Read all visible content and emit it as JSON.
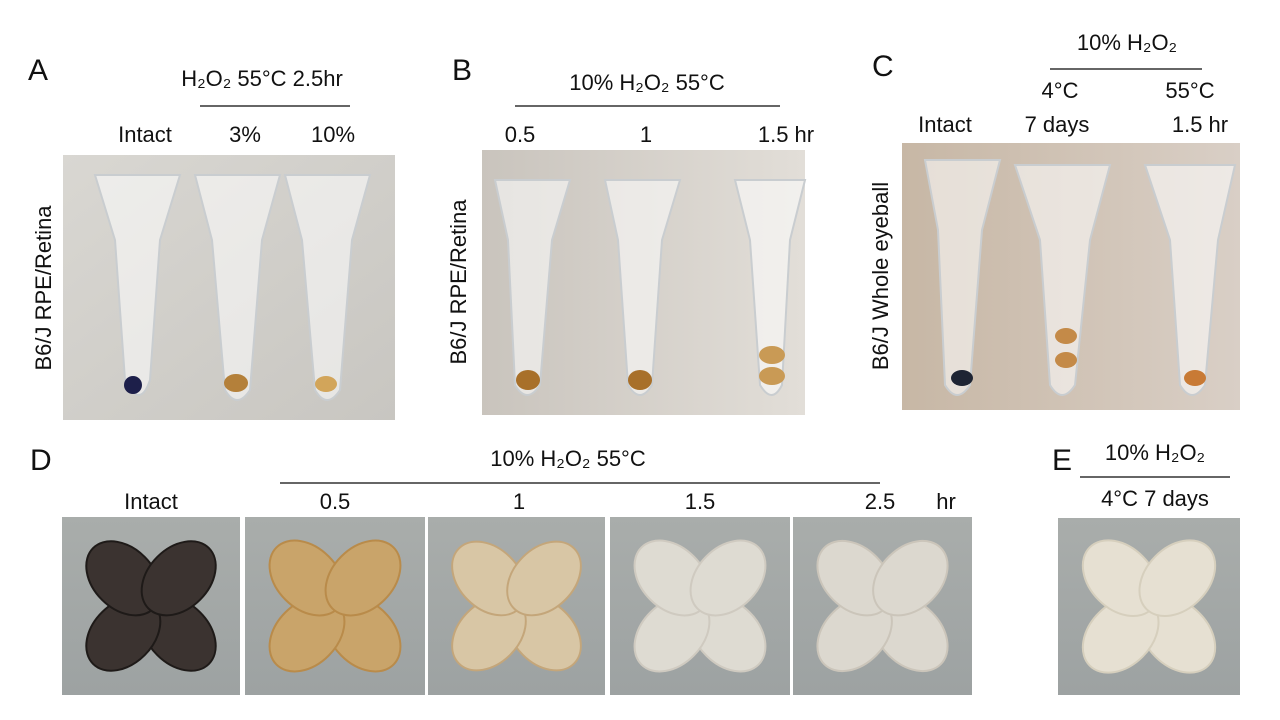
{
  "panels": [
    {
      "letter": "A",
      "header": "H₂O₂ 55°C 2.5hr",
      "columns": [
        "Intact",
        "3%",
        "10%"
      ],
      "row_label": "B6/J  RPE/Retina"
    },
    {
      "letter": "B",
      "header": "10% H₂O₂ 55°C",
      "columns": [
        "0.5",
        "1",
        "1.5 hr"
      ],
      "row_label": "B6/J  RPE/Retina"
    },
    {
      "letter": "C",
      "header": "10% H₂O₂",
      "subheaders": [
        "4°C",
        "55°C"
      ],
      "columns": [
        "Intact",
        "7 days",
        "1.5 hr"
      ],
      "row_label": "B6/J  Whole eyeball"
    },
    {
      "letter": "D",
      "header": "10% H₂O₂ 55°C",
      "columns": [
        "Intact",
        "0.5",
        "1",
        "1.5",
        "2.5",
        "hr"
      ]
    },
    {
      "letter": "E",
      "header": "10% H₂O₂",
      "columns": [
        "4°C 7 days"
      ]
    }
  ]
}
